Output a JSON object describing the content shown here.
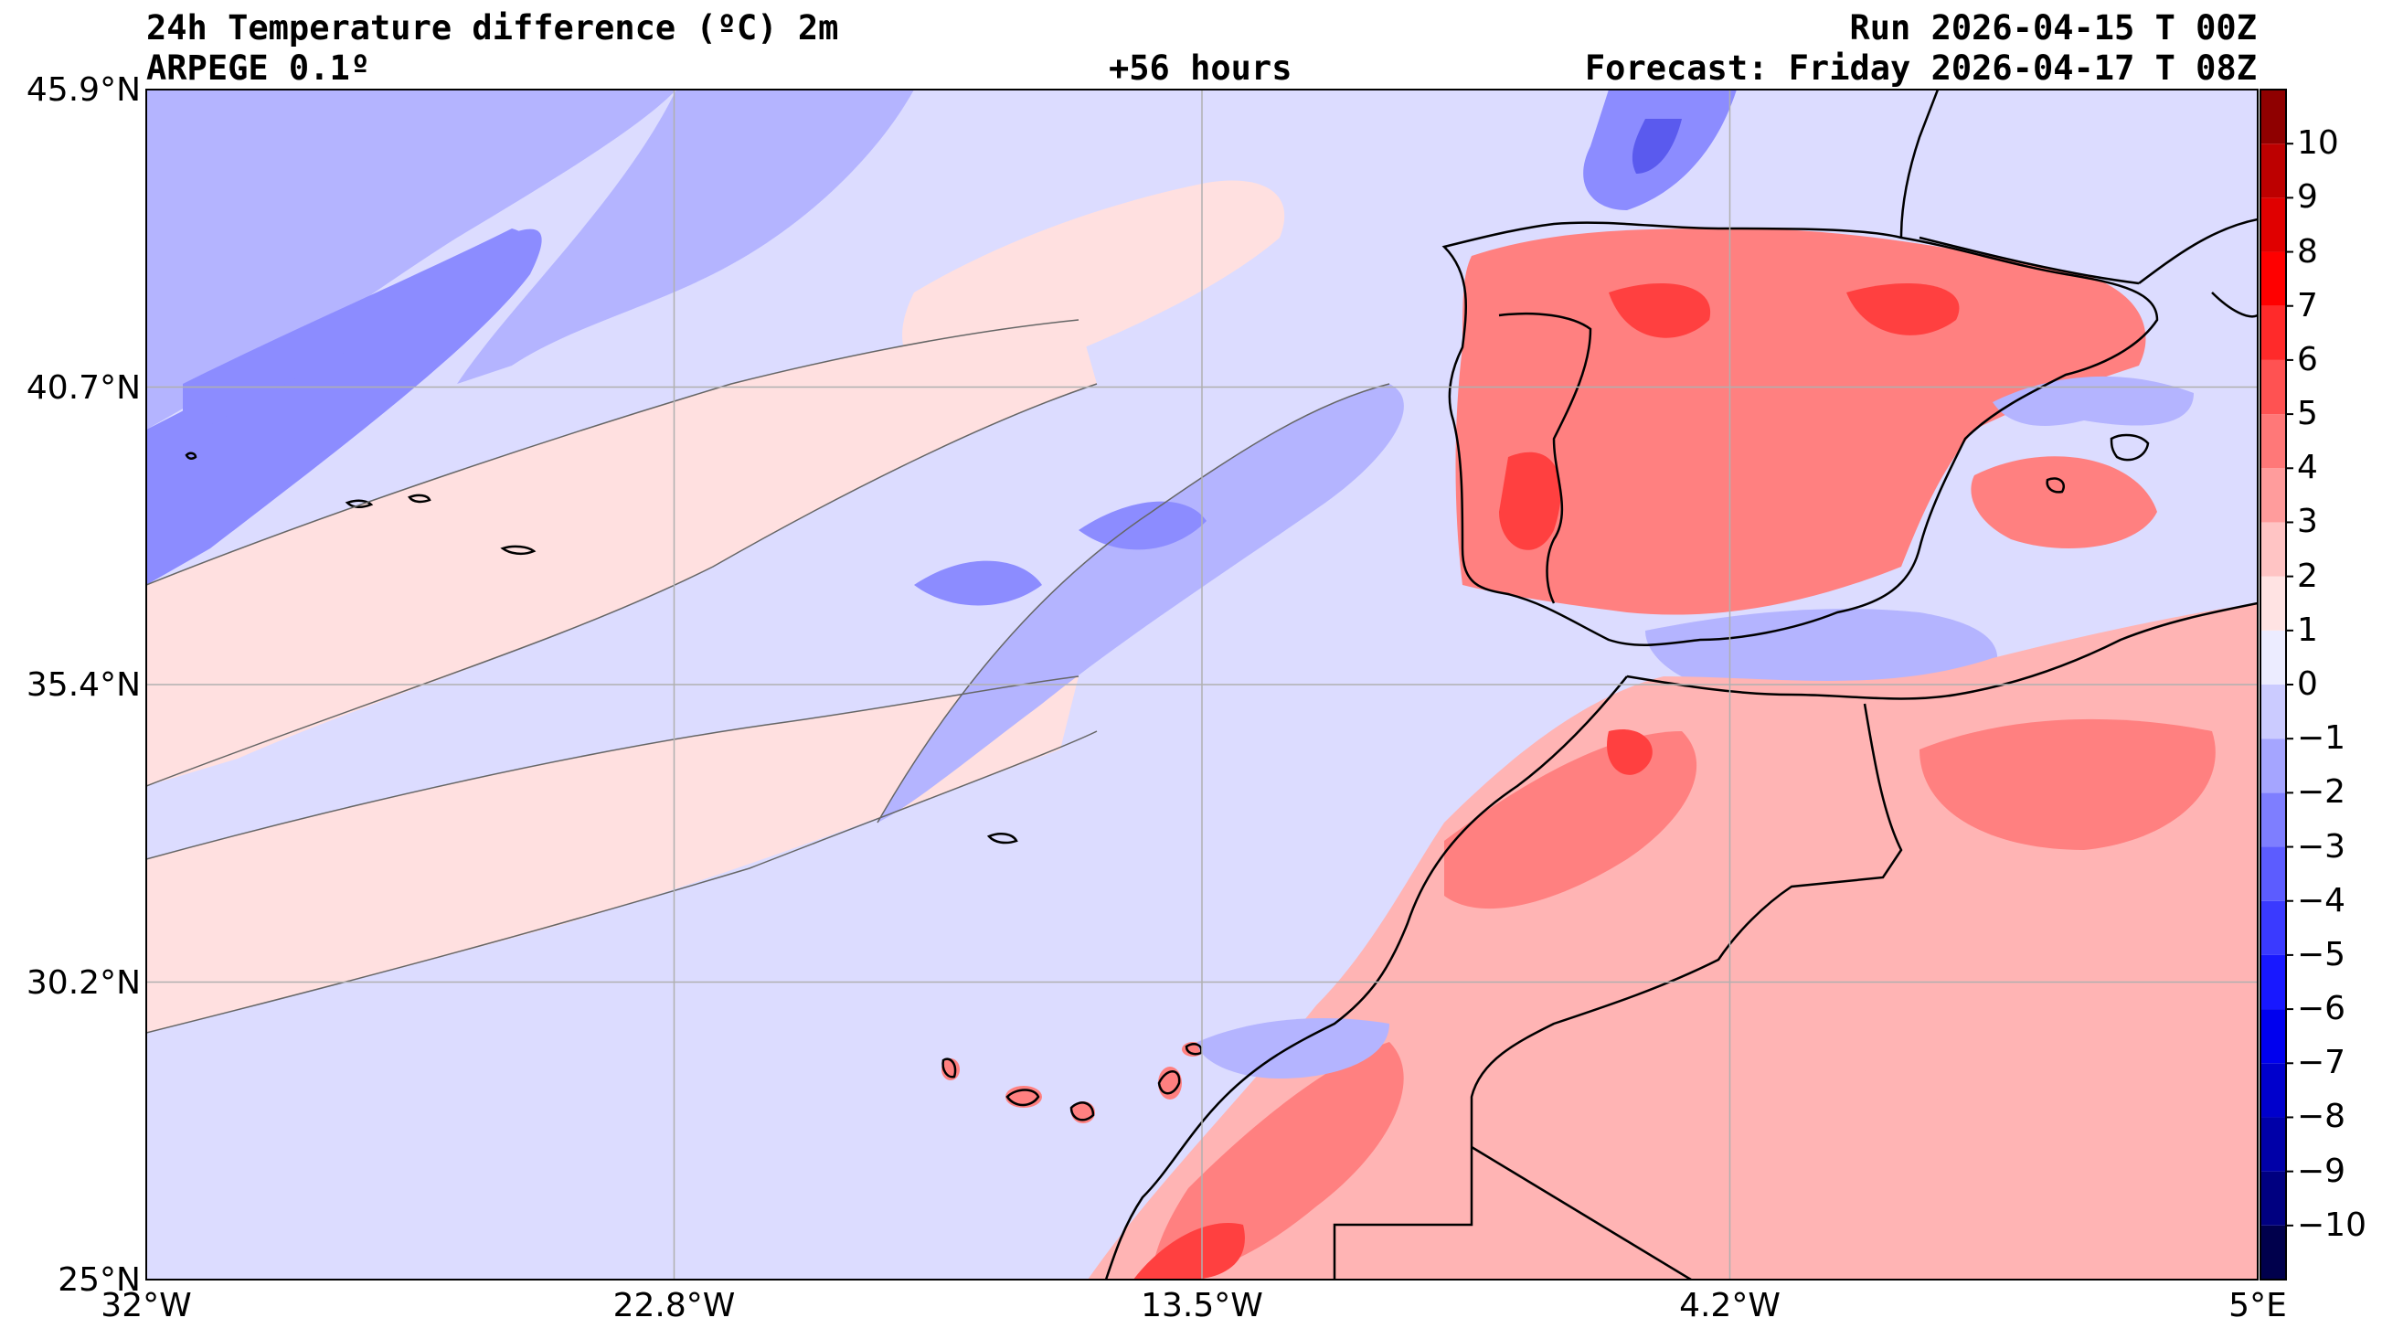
{
  "header": {
    "title": "24h Temperature difference (ºC) 2m",
    "model": "ARPEGE 0.1º",
    "lead": "+56 hours",
    "run": "Run 2026-04-15 T 00Z",
    "forecast": "Forecast: Friday 2026-04-17 T 08Z"
  },
  "map": {
    "lat_labels": [
      "45.9°N",
      "40.7°N",
      "35.4°N",
      "30.2°N",
      "25°N"
    ],
    "lon_labels": [
      "32°W",
      "22.8°W",
      "13.5°W",
      "4.2°W",
      "5°E"
    ],
    "lat_range": [
      25,
      45.9
    ],
    "lon_range": [
      -32,
      5
    ],
    "grid": true
  },
  "colorbar": {
    "tick_labels": [
      "10",
      "9",
      "8",
      "7",
      "6",
      "5",
      "4",
      "3",
      "2",
      "1",
      "0",
      "−1",
      "−2",
      "−3",
      "−4",
      "−5",
      "−6",
      "−7",
      "−8",
      "−9",
      "−10"
    ],
    "levels": [
      -11,
      -10,
      -9,
      -8,
      -7,
      -6,
      -5,
      -4,
      -3,
      -2,
      -1,
      0,
      1,
      2,
      3,
      4,
      5,
      6,
      7,
      8,
      9,
      10,
      11
    ],
    "colors": [
      "#00004c",
      "#000080",
      "#0000a8",
      "#0000cc",
      "#0000ee",
      "#1818ff",
      "#3a3aff",
      "#5c5cff",
      "#7e7eff",
      "#a5a5ff",
      "#cbcbff",
      "#ececff",
      "#ffe3e3",
      "#ffc4c4",
      "#ff9c9c",
      "#ff7878",
      "#ff5252",
      "#ff2a2a",
      "#ff0000",
      "#e00000",
      "#bd0000",
      "#8f0000"
    ]
  },
  "palette": {
    "sea_cold": "#dcdcff",
    "weak_cold": "#b4b4ff",
    "mid_cold": "#8c8cff",
    "deep_cold": "#5a5aee",
    "weak_warm": "#ffe0e0",
    "mid_warm": "#ffb4b4",
    "strong_warm": "#ff8080",
    "hot": "#ff4040",
    "coast": "#000000"
  }
}
